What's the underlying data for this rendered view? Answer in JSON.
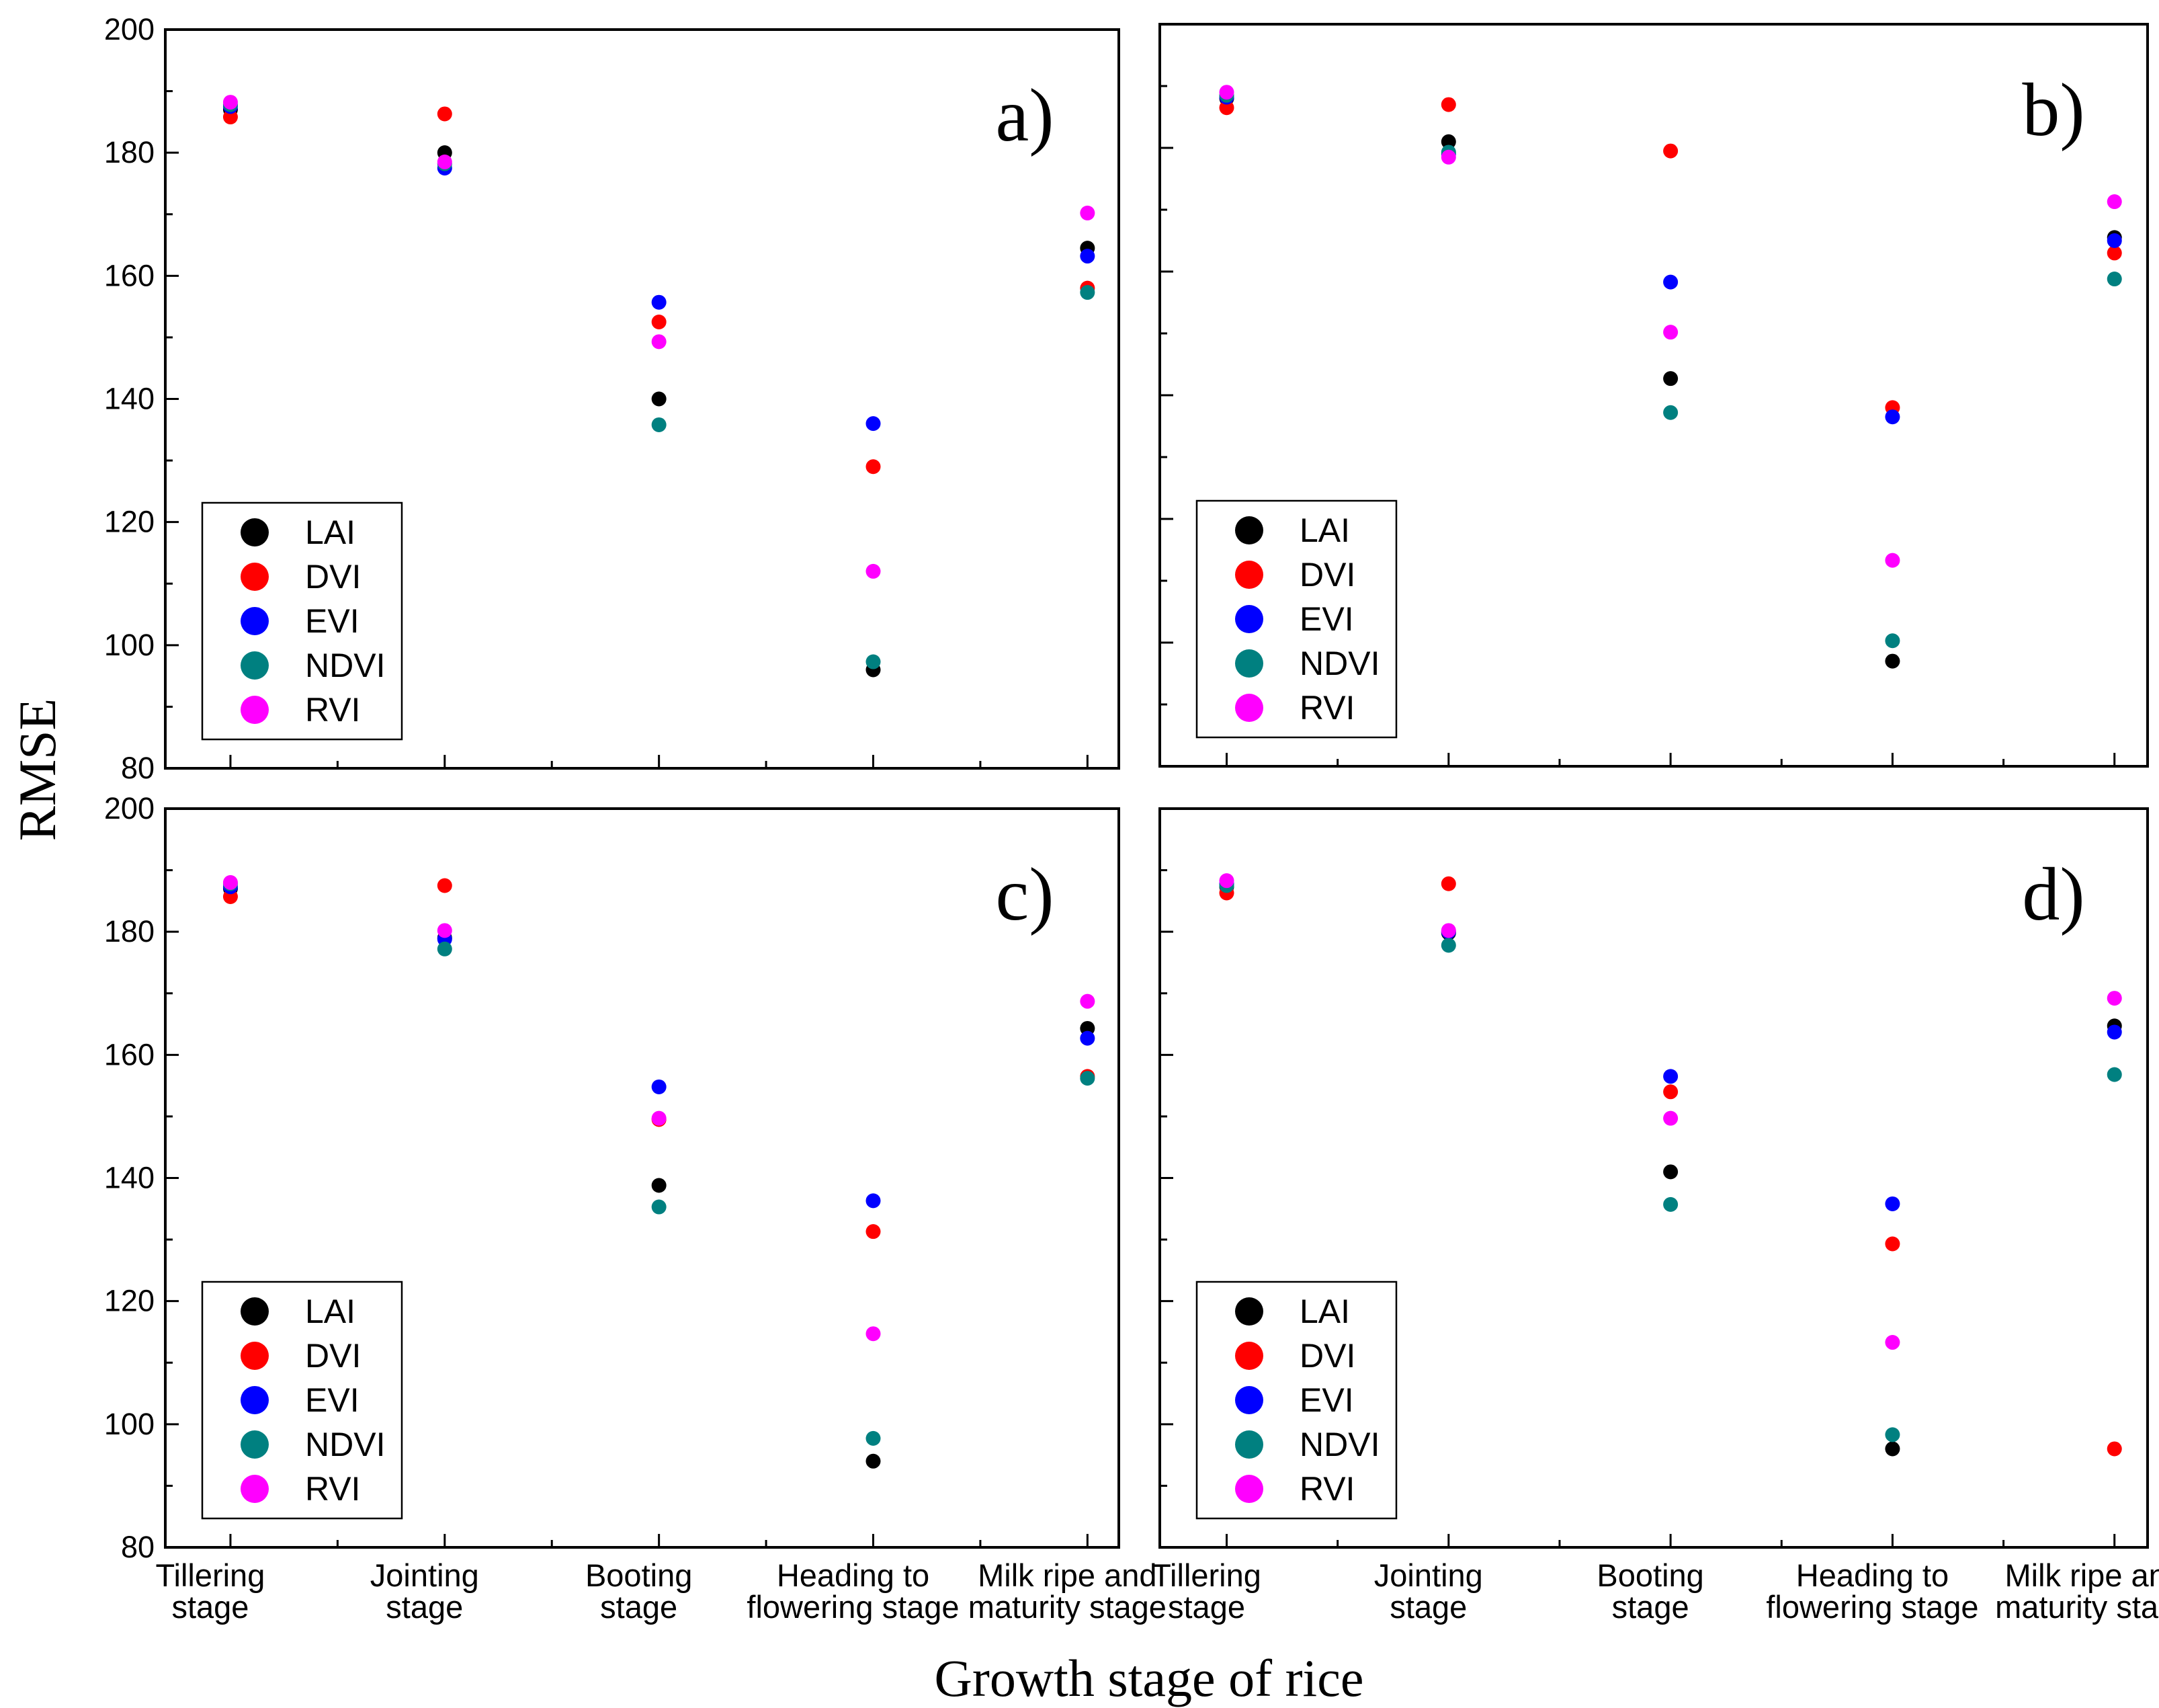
{
  "chart_data": {
    "type": "scatter",
    "ylabel": "RMSE",
    "xlabel": "Growth stage of rice",
    "ylim": [
      80,
      200
    ],
    "yticks": [
      "80",
      "100",
      "120",
      "140",
      "160",
      "180",
      "200"
    ],
    "categories": [
      [
        "Tillering",
        "stage"
      ],
      [
        "Jointing",
        "stage"
      ],
      [
        "Booting",
        "stage"
      ],
      [
        "Heading to",
        "flowering stage"
      ],
      [
        "Milk ripe and",
        "maturity stage"
      ]
    ],
    "legend_position": "bottom-left",
    "panels": [
      {
        "label": "a)",
        "series": [
          {
            "name": "LAI",
            "color": "#000000",
            "values": [
              187.0,
              180.0,
              140.0,
              96.0,
              164.5
            ]
          },
          {
            "name": "DVI",
            "color": "#ff0000",
            "values": [
              185.8,
              186.3,
              152.5,
              129.0,
              158.0
            ]
          },
          {
            "name": "EVI",
            "color": "#0000ff",
            "values": [
              187.5,
              177.5,
              155.7,
              136.0,
              163.2
            ]
          },
          {
            "name": "NDVI",
            "color": "#008080",
            "values": [
              187.8,
              178.2,
              135.8,
              97.3,
              157.3
            ]
          },
          {
            "name": "RVI",
            "color": "#ff00ff",
            "values": [
              188.2,
              178.5,
              149.3,
              112.0,
              170.2
            ]
          }
        ]
      },
      {
        "label": "b)",
        "series": [
          {
            "name": "LAI",
            "color": "#000000",
            "values": [
              188.0,
              181.0,
              142.7,
              97.0,
              165.5
            ]
          },
          {
            "name": "DVI",
            "color": "#ff0000",
            "values": [
              186.5,
              187.0,
              179.5,
              138.0,
              163.0
            ]
          },
          {
            "name": "EVI",
            "color": "#0000ff",
            "values": [
              188.2,
              179.0,
              158.3,
              136.5,
              165.0
            ]
          },
          {
            "name": "NDVI",
            "color": "#008080",
            "values": [
              188.5,
              179.3,
              137.2,
              100.3,
              158.8
            ]
          },
          {
            "name": "RVI",
            "color": "#ff00ff",
            "values": [
              189.0,
              178.5,
              150.2,
              113.3,
              171.3
            ]
          }
        ]
      },
      {
        "label": "c)",
        "series": [
          {
            "name": "LAI",
            "color": "#000000",
            "values": [
              187.0,
              179.0,
              138.8,
              94.0,
              164.3
            ]
          },
          {
            "name": "DVI",
            "color": "#ff0000",
            "values": [
              185.7,
              187.5,
              149.5,
              131.3,
              156.5
            ]
          },
          {
            "name": "EVI",
            "color": "#0000ff",
            "values": [
              187.3,
              178.8,
              154.8,
              136.3,
              162.7
            ]
          },
          {
            "name": "NDVI",
            "color": "#008080",
            "values": [
              187.8,
              177.2,
              135.3,
              97.7,
              156.2
            ]
          },
          {
            "name": "RVI",
            "color": "#ff00ff",
            "values": [
              188.0,
              180.2,
              149.7,
              114.7,
              168.7
            ]
          }
        ]
      },
      {
        "label": "d)",
        "series": [
          {
            "name": "LAI",
            "color": "#000000",
            "values": [
              187.3,
              179.8,
              141.0,
              96.0,
              164.7
            ]
          },
          {
            "name": "DVI",
            "color": "#ff0000",
            "values": [
              186.3,
              187.8,
              154.0,
              129.3,
              96.0
            ]
          },
          {
            "name": "EVI",
            "color": "#0000ff",
            "values": [
              187.8,
              180.0,
              156.5,
              135.8,
              163.7
            ]
          },
          {
            "name": "NDVI",
            "color": "#008080",
            "values": [
              187.5,
              177.8,
              135.7,
              98.3,
              156.8
            ]
          },
          {
            "name": "RVI",
            "color": "#ff00ff",
            "values": [
              188.3,
              180.2,
              149.7,
              113.3,
              169.2
            ]
          }
        ]
      }
    ]
  }
}
